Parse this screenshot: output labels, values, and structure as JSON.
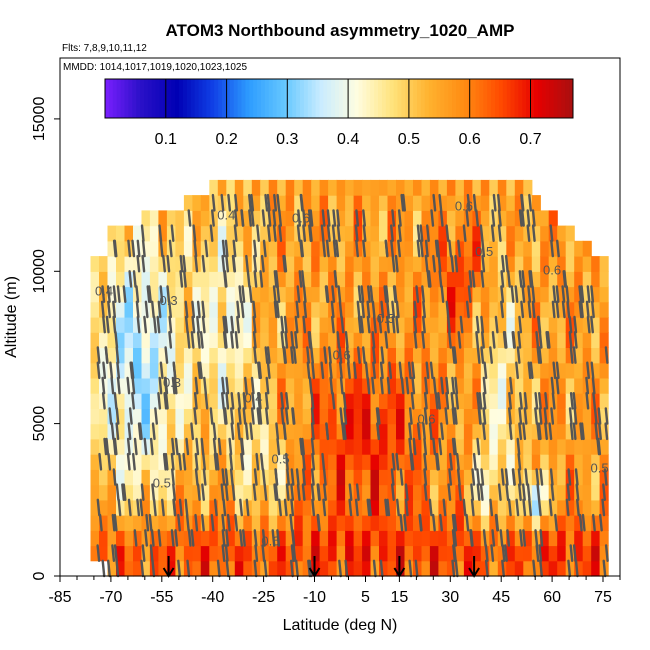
{
  "chart_data": {
    "type": "heatmap",
    "title": "ATOM3 Northbound asymmetry_1020_AMP",
    "subtitle_flights": "Flts: 7,8,9,10,11,12",
    "subtitle_dates": "MMDD: 1014,1017,1019,1020,1023,1025",
    "xlabel": "Latitude (deg N)",
    "ylabel": "Altitude (m)",
    "xlim": [
      -85,
      80
    ],
    "ylim": [
      0,
      17000
    ],
    "x_ticks": [
      -85,
      -70,
      -55,
      -40,
      -25,
      -10,
      5,
      15,
      30,
      45,
      60,
      75
    ],
    "x_tick_labels": [
      "-85",
      "-70",
      "-55",
      "-40",
      "-25",
      "-10",
      "5",
      "15",
      "30",
      "45",
      "60",
      "75"
    ],
    "y_ticks": [
      0,
      5000,
      10000,
      15000
    ],
    "y_tick_labels": [
      "0",
      "5000",
      "10000",
      "15000"
    ],
    "colorbar": {
      "min": 0.0,
      "max": 0.77,
      "ticks": [
        0.1,
        0.2,
        0.3,
        0.4,
        0.5,
        0.6,
        0.7
      ],
      "tick_labels": [
        "0.1",
        "0.2",
        "0.3",
        "0.4",
        "0.5",
        "0.6",
        "0.7"
      ],
      "colors": [
        "#7a1fff",
        "#2a10c8",
        "#0000b4",
        "#1040e6",
        "#2d9cff",
        "#66c8ff",
        "#c9ecff",
        "#fffde0",
        "#ffe27a",
        "#ffb22e",
        "#ff8a12",
        "#ff4a00",
        "#e60000",
        "#a81010"
      ]
    },
    "contour_labels": [
      {
        "text": "0.4",
        "x": -36,
        "y": 11700
      },
      {
        "text": "0.4",
        "x": -72,
        "y": 9200
      },
      {
        "text": "0.3",
        "x": -53,
        "y": 8900
      },
      {
        "text": "0.3",
        "x": -52,
        "y": 6200
      },
      {
        "text": "0.4",
        "x": -28,
        "y": 5700
      },
      {
        "text": "0.5",
        "x": -55,
        "y": 2900
      },
      {
        "text": "0.6",
        "x": -23,
        "y": 1000
      },
      {
        "text": "0.5",
        "x": -20,
        "y": 3700
      },
      {
        "text": "0.6",
        "x": -14,
        "y": 11600
      },
      {
        "text": "0.6",
        "x": -2,
        "y": 7100
      },
      {
        "text": "0.5",
        "x": 11,
        "y": 8300
      },
      {
        "text": "0.6",
        "x": 23,
        "y": 5000
      },
      {
        "text": "0.6",
        "x": 34,
        "y": 12000
      },
      {
        "text": "0.5",
        "x": 40,
        "y": 10500
      },
      {
        "text": "0.6",
        "x": 60,
        "y": 9900
      },
      {
        "text": "0.5",
        "x": 74,
        "y": 3400
      }
    ],
    "arrows_x": [
      -53,
      -10,
      15,
      37
    ]
  }
}
